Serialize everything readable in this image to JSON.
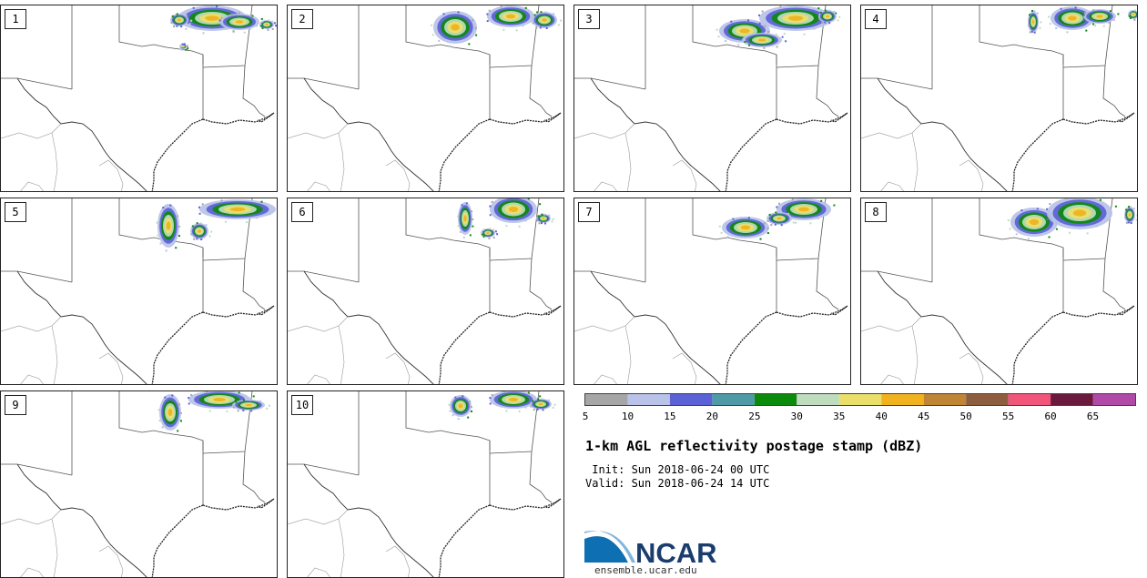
{
  "panels": [
    {
      "label": "1",
      "storm": [
        [
          [
            232,
            14
          ],
          [
            38,
            14
          ]
        ],
        [
          [
            262,
            18
          ],
          [
            22,
            9
          ]
        ],
        [
          [
            196,
            16
          ],
          [
            10,
            7
          ]
        ],
        [
          [
            292,
            21
          ],
          [
            8,
            5
          ]
        ],
        [
          [
            200,
            45
          ],
          [
            4,
            3
          ]
        ]
      ]
    },
    {
      "label": "2",
      "storm": [
        [
          [
            184,
            24
          ],
          [
            24,
            18
          ]
        ],
        [
          [
            245,
            12
          ],
          [
            26,
            12
          ]
        ],
        [
          [
            282,
            16
          ],
          [
            14,
            9
          ]
        ]
      ]
    },
    {
      "label": "3",
      "storm": [
        [
          [
            187,
            28
          ],
          [
            28,
            13
          ]
        ],
        [
          [
            243,
            14
          ],
          [
            40,
            14
          ]
        ],
        [
          [
            278,
            12
          ],
          [
            10,
            7
          ]
        ],
        [
          [
            206,
            38
          ],
          [
            22,
            8
          ]
        ]
      ]
    },
    {
      "label": "4",
      "storm": [
        [
          [
            232,
            14
          ],
          [
            24,
            13
          ]
        ],
        [
          [
            262,
            12
          ],
          [
            18,
            8
          ]
        ],
        [
          [
            189,
            18
          ],
          [
            6,
            12
          ]
        ],
        [
          [
            299,
            10
          ],
          [
            6,
            5
          ]
        ]
      ]
    },
    {
      "label": "5",
      "storm": [
        [
          [
            184,
            30
          ],
          [
            12,
            24
          ]
        ],
        [
          [
            260,
            12
          ],
          [
            42,
            11
          ]
        ],
        [
          [
            218,
            36
          ],
          [
            10,
            9
          ]
        ]
      ]
    },
    {
      "label": "6",
      "storm": [
        [
          [
            195,
            22
          ],
          [
            8,
            18
          ]
        ],
        [
          [
            248,
            12
          ],
          [
            26,
            15
          ]
        ],
        [
          [
            281,
            22
          ],
          [
            8,
            5
          ]
        ],
        [
          [
            220,
            38
          ],
          [
            8,
            5
          ]
        ]
      ]
    },
    {
      "label": "7",
      "storm": [
        [
          [
            188,
            32
          ],
          [
            26,
            12
          ]
        ],
        [
          [
            252,
            12
          ],
          [
            30,
            12
          ]
        ],
        [
          [
            225,
            22
          ],
          [
            14,
            7
          ]
        ]
      ]
    },
    {
      "label": "8",
      "storm": [
        [
          [
            190,
            26
          ],
          [
            26,
            16
          ]
        ],
        [
          [
            240,
            16
          ],
          [
            36,
            18
          ]
        ],
        [
          [
            295,
            18
          ],
          [
            6,
            9
          ]
        ]
      ]
    },
    {
      "label": "9",
      "storm": [
        [
          [
            186,
            23
          ],
          [
            12,
            20
          ]
        ],
        [
          [
            240,
            9
          ],
          [
            34,
            10
          ]
        ],
        [
          [
            272,
            15
          ],
          [
            18,
            6
          ]
        ]
      ]
    },
    {
      "label": "10",
      "storm": [
        [
          [
            190,
            16
          ],
          [
            12,
            12
          ]
        ],
        [
          [
            248,
            9
          ],
          [
            26,
            10
          ]
        ],
        [
          [
            278,
            14
          ],
          [
            12,
            6
          ]
        ]
      ]
    }
  ],
  "colorbar": {
    "colors": [
      "#a6a6a6",
      "#b9c2e8",
      "#5b62d6",
      "#4e9aa6",
      "#0c8a0c",
      "#bfdcbf",
      "#ebdf6b",
      "#f0b21d",
      "#bd8534",
      "#8e5d3e",
      "#f2557a",
      "#6b1a3d",
      "#b04aa6"
    ],
    "labels": [
      "5",
      "10",
      "15",
      "20",
      "25",
      "30",
      "35",
      "40",
      "45",
      "50",
      "55",
      "60",
      "65"
    ]
  },
  "title": "1-km AGL reflectivity postage stamp (dBZ)",
  "init": " Init: Sun 2018-06-24 00 UTC",
  "valid": "Valid: Sun 2018-06-24 14 UTC",
  "logo_text": "NCAR",
  "site": "ensemble.ucar.edu"
}
